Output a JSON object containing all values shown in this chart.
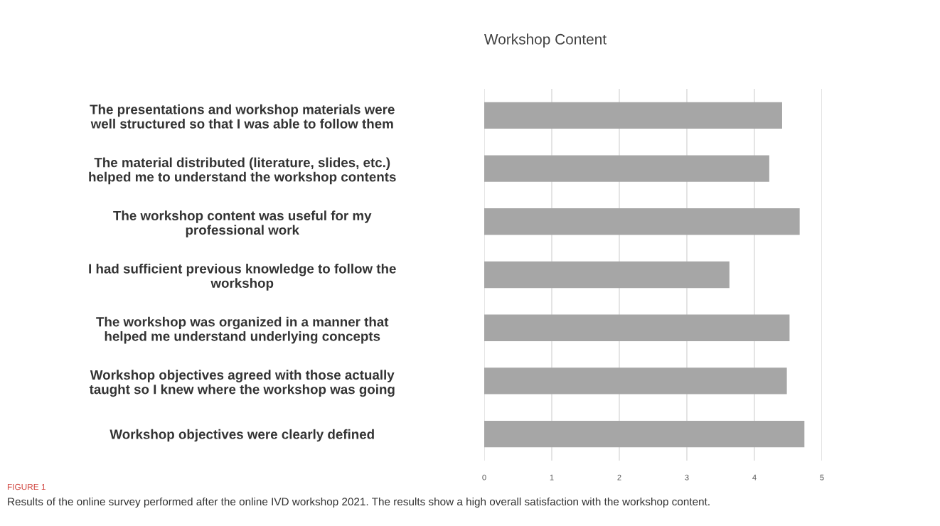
{
  "chart_data": {
    "type": "bar",
    "orientation": "horizontal",
    "title": "Workshop Content",
    "categories": [
      "The presentations and workshop materials were\nwell structured so that I was able to follow them",
      "The material distributed (literature, slides, etc.)\nhelped me to understand the workshop contents",
      "The workshop content was useful for my\nprofessional work",
      "I had sufficient previous knowledge to follow the\nworkshop",
      "The workshop was organized in a manner that\nhelped me understand underlying concepts",
      "Workshop objectives agreed with those actually\ntaught so I knew where the workshop was going",
      "Workshop objectives were clearly defined"
    ],
    "values": [
      4.41,
      4.22,
      4.67,
      3.63,
      4.52,
      4.48,
      4.74
    ],
    "color": "#a6a6a6",
    "xlim": [
      0,
      5
    ],
    "xticks": [
      0,
      1,
      2,
      3,
      4,
      5
    ],
    "grid": "x",
    "annotations": [
      "FIGURE 1",
      "Results of the online survey performed after the online IVD workshop 2021. The results show a high overall satisfaction with the workshop content."
    ]
  }
}
